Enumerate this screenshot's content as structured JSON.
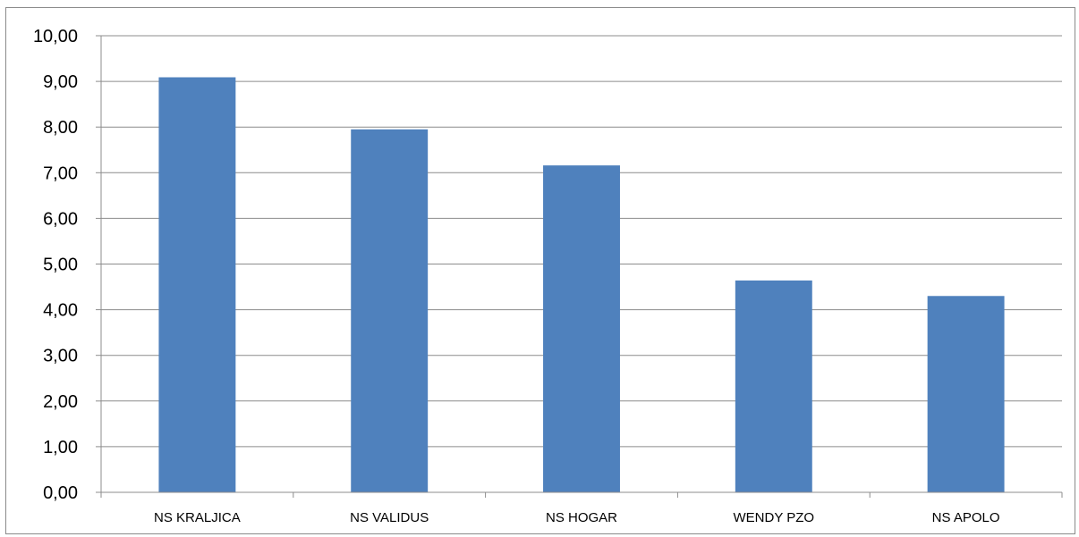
{
  "chart_data": {
    "type": "bar",
    "title": "",
    "xlabel": "",
    "ylabel": "",
    "categories": [
      "NS KRALJICA",
      "NS VALIDUS",
      "NS HOGAR",
      "WENDY PZO",
      "NS APOLO"
    ],
    "values": [
      9.09,
      7.95,
      7.16,
      4.64,
      4.3
    ],
    "ylim": [
      0,
      10
    ],
    "yticks": [
      "0,00",
      "1,00",
      "2,00",
      "3,00",
      "4,00",
      "5,00",
      "6,00",
      "7,00",
      "8,00",
      "9,00",
      "10,00"
    ],
    "grid": true,
    "legend": "none",
    "bar_color": "#4f81bd"
  }
}
